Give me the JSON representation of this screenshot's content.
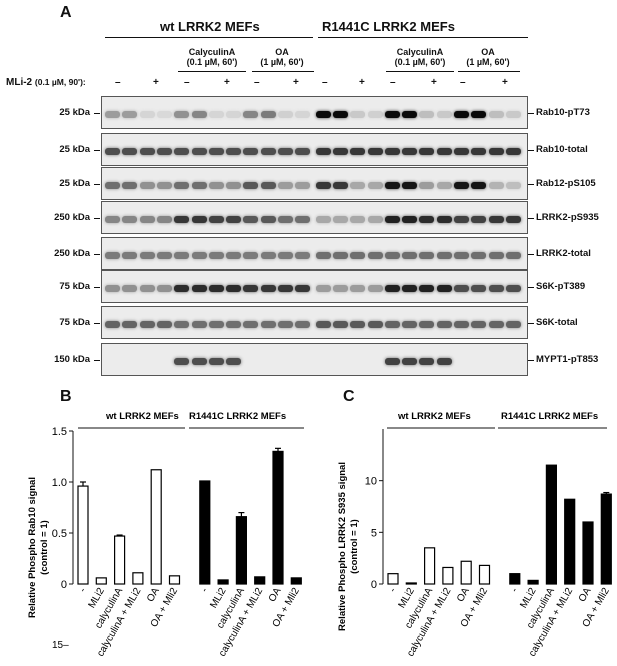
{
  "panelA": {
    "letter": "A",
    "group_wt": "wt LRRK2 MEFs",
    "group_r1441c": "R1441C LRRK2 MEFs",
    "calyculin_label": "CalyculinA",
    "calyculin_dose": "(0.1 µM, 60')",
    "oa_label": "OA",
    "oa_dose": "(1 µM, 60')",
    "mli2_label": "MLi-2",
    "mli2_dose": "(0.1 µM, 90'):",
    "mli2_signs": [
      "–",
      "+",
      "–",
      "+",
      "–",
      "+",
      "–",
      "+",
      "–",
      "+",
      "–",
      "+"
    ],
    "blots": [
      {
        "label": "Rab10-pT73",
        "kda": "25 kDa",
        "intensities": [
          0.35,
          0.35,
          0.1,
          0.08,
          0.4,
          0.45,
          0.1,
          0.1,
          0.45,
          0.5,
          0.12,
          0.1,
          1,
          1,
          0.15,
          0.12,
          1,
          1,
          0.2,
          0.15,
          1,
          1,
          0.2,
          0.15
        ]
      },
      {
        "label": "Rab10-total",
        "kda": "25 kDa",
        "intensities": [
          0.7,
          0.7,
          0.7,
          0.7,
          0.7,
          0.7,
          0.7,
          0.7,
          0.7,
          0.7,
          0.7,
          0.7,
          0.8,
          0.8,
          0.8,
          0.8,
          0.8,
          0.8,
          0.8,
          0.8,
          0.8,
          0.8,
          0.8,
          0.8
        ]
      },
      {
        "label": "Rab12-pS105",
        "kda": "25 kDa",
        "intensities": [
          0.55,
          0.55,
          0.4,
          0.4,
          0.55,
          0.55,
          0.4,
          0.4,
          0.65,
          0.65,
          0.35,
          0.35,
          0.8,
          0.8,
          0.3,
          0.3,
          0.95,
          0.95,
          0.35,
          0.3,
          0.95,
          0.95,
          0.25,
          0.2
        ]
      },
      {
        "label": "LRRK2-pS935",
        "kda": "250 kDa",
        "intensities": [
          0.45,
          0.45,
          0.45,
          0.45,
          0.8,
          0.8,
          0.75,
          0.75,
          0.65,
          0.65,
          0.55,
          0.55,
          0.3,
          0.3,
          0.3,
          0.3,
          0.9,
          0.9,
          0.85,
          0.85,
          0.75,
          0.75,
          0.8,
          0.8
        ]
      },
      {
        "label": "LRRK2-total",
        "kda": "250 kDa",
        "intensities": [
          0.5,
          0.5,
          0.5,
          0.5,
          0.5,
          0.5,
          0.5,
          0.5,
          0.5,
          0.5,
          0.5,
          0.5,
          0.55,
          0.55,
          0.55,
          0.55,
          0.55,
          0.55,
          0.55,
          0.55,
          0.55,
          0.55,
          0.55,
          0.55
        ]
      },
      {
        "label": "S6K-pT389",
        "kda": "75 kDa",
        "intensities": [
          0.4,
          0.4,
          0.4,
          0.4,
          0.85,
          0.85,
          0.85,
          0.85,
          0.8,
          0.8,
          0.8,
          0.8,
          0.35,
          0.35,
          0.35,
          0.35,
          0.9,
          0.9,
          0.9,
          0.9,
          0.7,
          0.7,
          0.7,
          0.7
        ]
      },
      {
        "label": "S6K-total",
        "kda": "75 kDa",
        "intensities": [
          0.6,
          0.6,
          0.6,
          0.6,
          0.55,
          0.55,
          0.55,
          0.55,
          0.55,
          0.55,
          0.55,
          0.55,
          0.65,
          0.65,
          0.65,
          0.65,
          0.6,
          0.6,
          0.6,
          0.6,
          0.6,
          0.6,
          0.6,
          0.6
        ]
      },
      {
        "label": "MYPT1-pT853",
        "kda": "150 kDa",
        "intensities": [
          0,
          0,
          0,
          0,
          0.7,
          0.7,
          0.7,
          0.7,
          0,
          0,
          0,
          0,
          0,
          0,
          0,
          0,
          0.75,
          0.75,
          0.75,
          0.75,
          0,
          0,
          0,
          0
        ]
      }
    ]
  },
  "panelB": {
    "letter": "B",
    "group_wt": "wt LRRK2 MEFs",
    "group_r1441c": "R1441C LRRK2 MEFs",
    "stray_label": "15–"
  },
  "panelC": {
    "letter": "C",
    "group_wt": "wt LRRK2 MEFs",
    "group_r1441c": "R1441C LRRK2 MEFs"
  },
  "chart_data": [
    {
      "type": "bar",
      "ylabel": "Relative Phospho Rab10 signal (control = 1)",
      "ylim": [
        0,
        1.5
      ],
      "yticks": [
        0,
        0.5,
        1.0,
        1.5
      ],
      "ytick_labels": [
        "0",
        "0.5",
        "1.0",
        "1.5"
      ],
      "categories": [
        "-",
        "MLi2",
        "calyculinA",
        "calyculinA + MLi2",
        "OA",
        "OA + Mli2"
      ],
      "series": [
        {
          "name": "wt LRRK2 MEFs",
          "fill": "open",
          "values": [
            0.96,
            0.06,
            0.47,
            0.11,
            1.12,
            0.08
          ],
          "errors": [
            0.04,
            0,
            0.01,
            0,
            0,
            0
          ]
        },
        {
          "name": "R1441C LRRK2 MEFs",
          "fill": "solid",
          "values": [
            1.01,
            0.04,
            0.66,
            0.07,
            1.3,
            0.06
          ],
          "errors": [
            0,
            0,
            0.04,
            0,
            0.03,
            0
          ]
        }
      ]
    },
    {
      "type": "bar",
      "ylabel": "Relative Phospho LRRK2 S935 signal (control = 1)",
      "ylim": [
        0,
        15
      ],
      "yticks": [
        0,
        5,
        10
      ],
      "ytick_labels": [
        "0",
        "5",
        "10"
      ],
      "categories": [
        "-",
        "MLi2",
        "calyculinA",
        "calyculinA + MLi2",
        "OA",
        "OA + Mli2"
      ],
      "series": [
        {
          "name": "wt LRRK2 MEFs",
          "fill": "open",
          "values": [
            1.0,
            0.1,
            3.5,
            1.6,
            2.2,
            1.8
          ],
          "errors": [
            0,
            0,
            0,
            0,
            0,
            0
          ]
        },
        {
          "name": "R1441C LRRK2 MEFs",
          "fill": "solid",
          "values": [
            1.0,
            0.35,
            11.5,
            8.2,
            6.0,
            8.7
          ],
          "errors": [
            0,
            0,
            0,
            0,
            0,
            0.15
          ]
        }
      ]
    }
  ]
}
